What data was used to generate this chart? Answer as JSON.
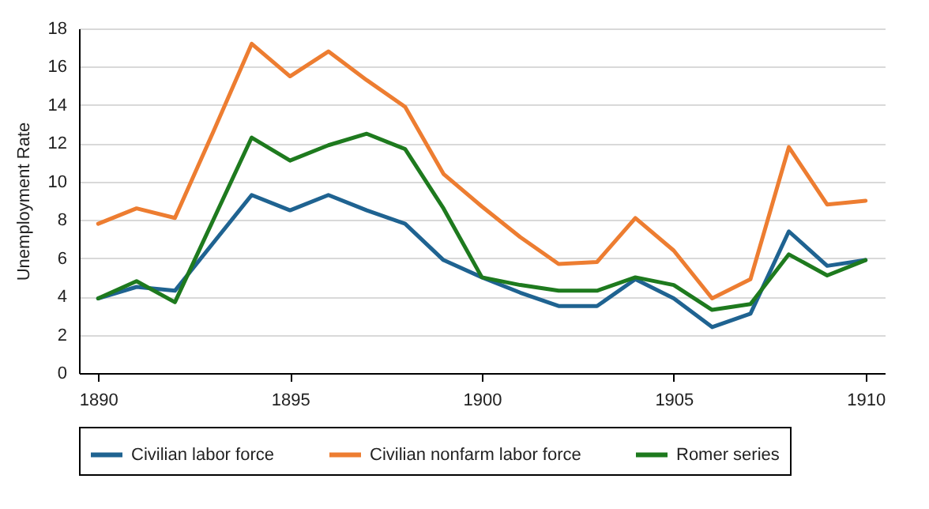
{
  "chart_data": {
    "type": "line",
    "ylabel": "Unemployment Rate",
    "x": [
      1890,
      1891,
      1892,
      1893,
      1894,
      1895,
      1896,
      1897,
      1898,
      1899,
      1900,
      1901,
      1902,
      1903,
      1904,
      1905,
      1906,
      1907,
      1908,
      1909,
      1910
    ],
    "series": [
      {
        "name": "Civilian labor force",
        "color": "#1f6391",
        "values": [
          3.9,
          4.5,
          4.3,
          6.8,
          9.3,
          8.5,
          9.3,
          8.5,
          7.8,
          5.9,
          5.0,
          4.2,
          3.5,
          3.5,
          4.9,
          3.9,
          2.4,
          3.1,
          7.4,
          5.6,
          5.9
        ]
      },
      {
        "name": "Civilian nonfarm labor force",
        "color": "#ed7d31",
        "values": [
          7.8,
          8.6,
          8.1,
          12.6,
          17.2,
          15.5,
          16.8,
          15.3,
          13.9,
          10.4,
          8.7,
          7.1,
          5.7,
          5.8,
          8.1,
          6.4,
          3.9,
          4.9,
          11.8,
          8.8,
          9.0
        ]
      },
      {
        "name": "Romer series",
        "color": "#1e7a1e",
        "values": [
          3.9,
          4.8,
          3.7,
          8.0,
          12.3,
          11.1,
          11.9,
          12.5,
          11.7,
          8.6,
          5.0,
          4.6,
          4.3,
          4.3,
          5.0,
          4.6,
          3.3,
          3.6,
          6.2,
          5.1,
          5.9
        ]
      }
    ],
    "xlim": [
      1889.5,
      1910.5
    ],
    "xticks": [
      1890,
      1895,
      1900,
      1905,
      1910
    ],
    "ylim": [
      0,
      18
    ],
    "yticks": [
      0,
      2,
      4,
      6,
      8,
      10,
      12,
      14,
      16,
      18
    ],
    "grid": "y",
    "legend": "bottom",
    "marker": "none",
    "line_style": "solid"
  }
}
